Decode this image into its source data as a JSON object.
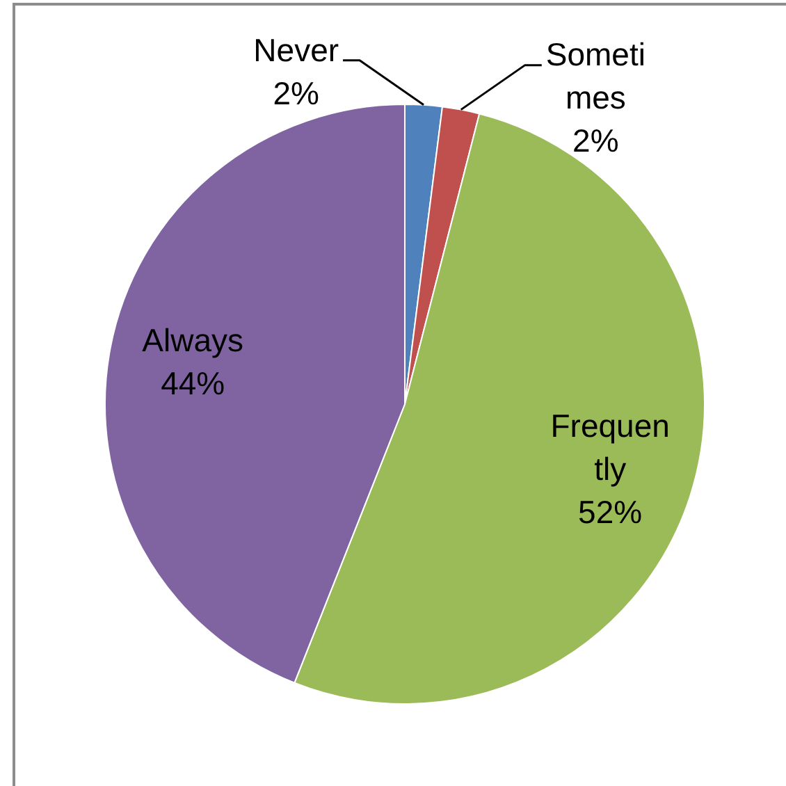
{
  "chart_data": {
    "type": "pie",
    "categories": [
      "Never",
      "Sometimes",
      "Frequently",
      "Always"
    ],
    "values": [
      2,
      2,
      52,
      44
    ],
    "colors": [
      "#4f81bd",
      "#c0504d",
      "#9bbb59",
      "#8064a2"
    ],
    "value_labels": [
      "2%",
      "2%",
      "52%",
      "44%"
    ]
  }
}
